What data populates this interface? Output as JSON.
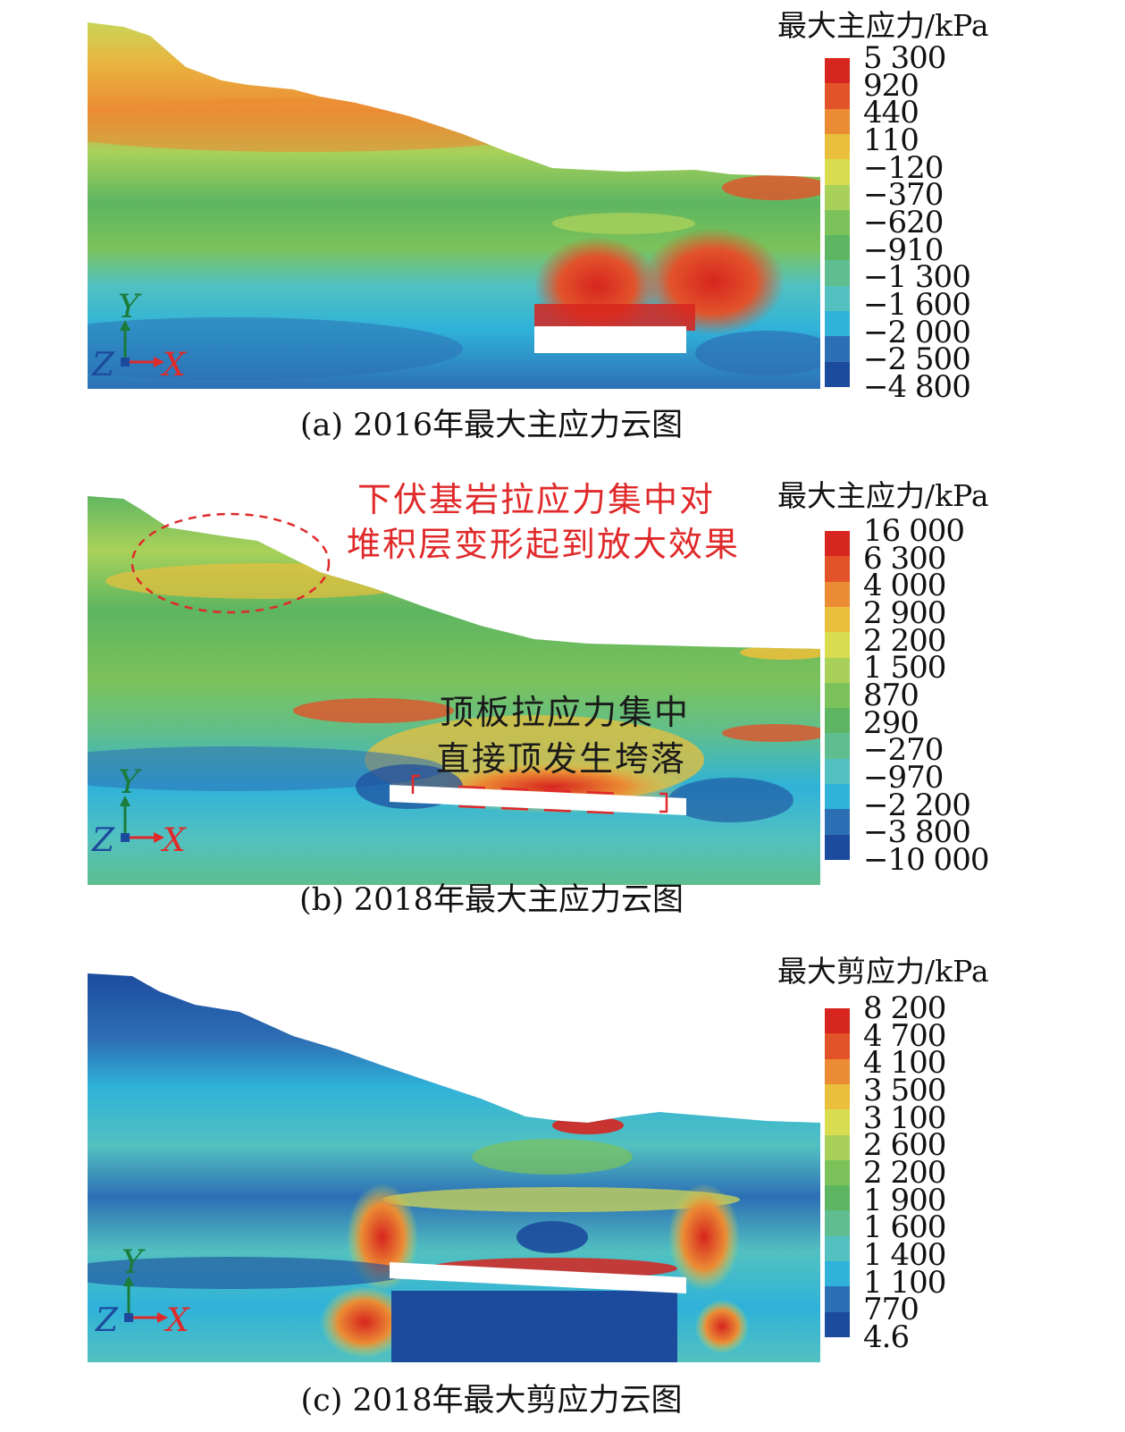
{
  "panels": [
    {
      "legend_title": "最大主应力/kPa",
      "ticks": [
        "5 300",
        "920",
        "440",
        "110",
        "−120",
        "−370",
        "−620",
        "−910",
        "−1 300",
        "−1 600",
        "−2 000",
        "−2 500",
        "−4 800"
      ],
      "caption": "(a) 2016年最大主应力云图"
    },
    {
      "legend_title": "最大主应力/kPa",
      "ticks": [
        "16 000",
        "6 300",
        "4 000",
        "2 900",
        "2 200",
        "1 500",
        "870",
        "290",
        "−270",
        "−970",
        "−2 200",
        "−3 800",
        "−10 000"
      ],
      "caption": "(b) 2018年最大主应力云图",
      "annotation_red_line1": "下伏基岩拉应力集中对",
      "annotation_red_line2": "堆积层变形起到放大效果",
      "annotation_dark_line1": "顶板拉应力集中",
      "annotation_dark_line2": "直接顶发生垮落"
    },
    {
      "legend_title": "最大剪应力/kPa",
      "ticks": [
        "8 200",
        "4 700",
        "4 100",
        "3 500",
        "3 100",
        "2 600",
        "2 200",
        "1 900",
        "1 600",
        "1 400",
        "1 100",
        "770",
        "4.6"
      ],
      "caption": "(c) 2018年最大剪应力云图"
    }
  ],
  "axes": {
    "y": "Y",
    "z": "Z",
    "x": "X"
  },
  "colorbar_colors": [
    "#d7251f",
    "#e2532a",
    "#eb8c34",
    "#e9bf3c",
    "#d9dc4f",
    "#a9d15a",
    "#7cc25a",
    "#5db561",
    "#5ebe8f",
    "#52c1c0",
    "#2fb2d9",
    "#2d6fb5",
    "#1c4a9c"
  ]
}
